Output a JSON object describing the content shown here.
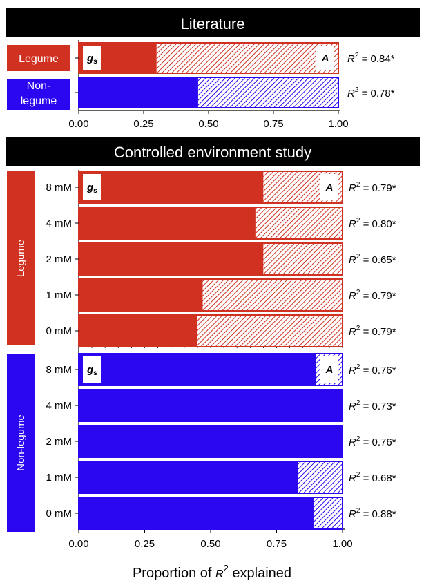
{
  "colors": {
    "legume": "#d03121",
    "nonlegume": "#2a07f0",
    "header_bg": "#000000",
    "header_text": "#ffffff"
  },
  "chart_data": [
    {
      "type": "bar",
      "orientation": "horizontal",
      "stacked": true,
      "panel_title": "Literature",
      "categories": [
        "Legume",
        "Non-legume"
      ],
      "category_label_lines": [
        [
          "Legume"
        ],
        [
          "Non-",
          "legume"
        ]
      ],
      "group_colors": [
        "legume",
        "nonlegume"
      ],
      "series": [
        {
          "name": "gs",
          "values": [
            0.3,
            0.46
          ],
          "pattern": "solid"
        },
        {
          "name": "A",
          "values": [
            0.7,
            0.54
          ],
          "pattern": "hatched"
        }
      ],
      "r2_labels": [
        "= 0.84*",
        "= 0.78*"
      ],
      "xlim": [
        0,
        1
      ],
      "xticks": [
        "0.00",
        "0.25",
        "0.50",
        "0.75",
        "1.00"
      ],
      "grid": false
    },
    {
      "type": "bar",
      "orientation": "horizontal",
      "stacked": true,
      "panel_title": "Controlled environment study",
      "groups": [
        {
          "name": "Legume",
          "color": "legume",
          "categories": [
            "8 mM",
            "4 mM",
            "2 mM",
            "1 mM",
            "0 mM"
          ],
          "series": [
            {
              "name": "gs",
              "values": [
                0.7,
                0.67,
                0.7,
                0.47,
                0.45
              ],
              "pattern": "solid"
            },
            {
              "name": "A",
              "values": [
                0.3,
                0.33,
                0.3,
                0.53,
                0.55
              ],
              "pattern": "hatched"
            }
          ],
          "r2_labels": [
            "= 0.79*",
            "= 0.80*",
            "= 0.65*",
            "= 0.79*",
            "= 0.79*"
          ]
        },
        {
          "name": "Non-legume",
          "color": "nonlegume",
          "categories": [
            "8 mM",
            "4 mM",
            "2 mM",
            "1 mM",
            "0 mM"
          ],
          "series": [
            {
              "name": "gs",
              "values": [
                0.9,
                1.0,
                1.0,
                0.83,
                0.89
              ],
              "pattern": "solid"
            },
            {
              "name": "A",
              "values": [
                0.1,
                0.0,
                0.0,
                0.17,
                0.11
              ],
              "pattern": "hatched"
            }
          ],
          "r2_labels": [
            "= 0.76*",
            "= 0.73*",
            "= 0.76*",
            "= 0.68*",
            "= 0.88*"
          ]
        }
      ],
      "xlim": [
        0,
        1
      ],
      "xticks": [
        "0.00",
        "0.25",
        "0.50",
        "0.75",
        "1.00"
      ],
      "xlabel": "Proportion of",
      "xlabel_symbol": "R",
      "xlabel_sup": "2",
      "xlabel_tail": "explained",
      "grid": false
    }
  ],
  "legend_labels": {
    "gs_main": "g",
    "gs_sub": "s",
    "A": "A"
  },
  "r2_symbol": "R",
  "r2_sup": "2"
}
